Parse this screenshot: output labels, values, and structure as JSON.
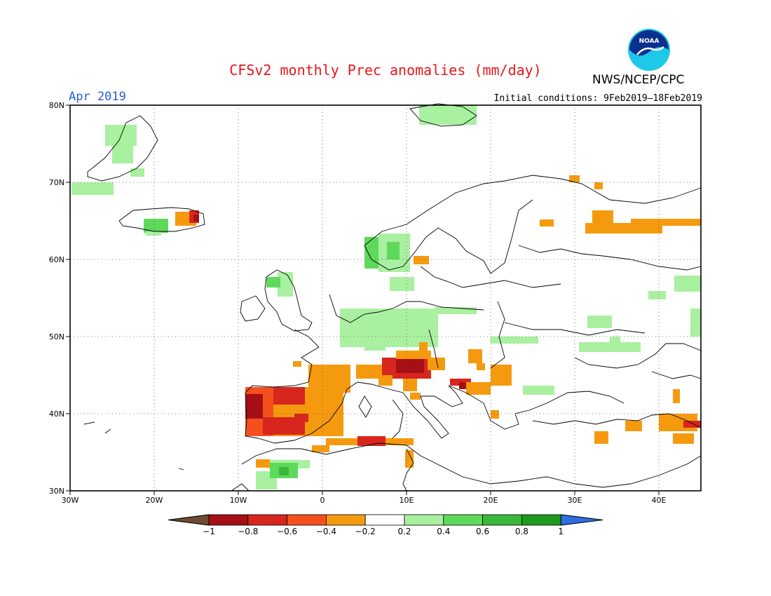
{
  "header": {
    "title": "CFSv2 monthly Prec anomalies (mm/day)",
    "agency": "NWS/NCEP/CPC",
    "month": "Apr 2019",
    "initial_conditions": "Initial conditions: 9Feb2019–18Feb2019",
    "logo_text": "NOAA"
  },
  "map": {
    "lon_labels": [
      "30W",
      "20W",
      "10W",
      "0",
      "10E",
      "20E",
      "30E",
      "40E"
    ],
    "lat_labels": [
      "80N",
      "70N",
      "60N",
      "50N",
      "40N",
      "30N"
    ]
  },
  "colorbar": {
    "tick_labels": [
      "−1",
      "−0.8",
      "−0.6",
      "−0.4",
      "−0.2",
      "0.2",
      "0.4",
      "0.6",
      "0.8",
      "1"
    ],
    "colors": [
      "#6e4b32",
      "#a50f15",
      "#d7261e",
      "#f4501e",
      "#f59a0f",
      "#ffffff",
      "#a9f0a0",
      "#5ed95a",
      "#39b83a",
      "#1e9a1e",
      "#2d6fe0"
    ]
  }
}
